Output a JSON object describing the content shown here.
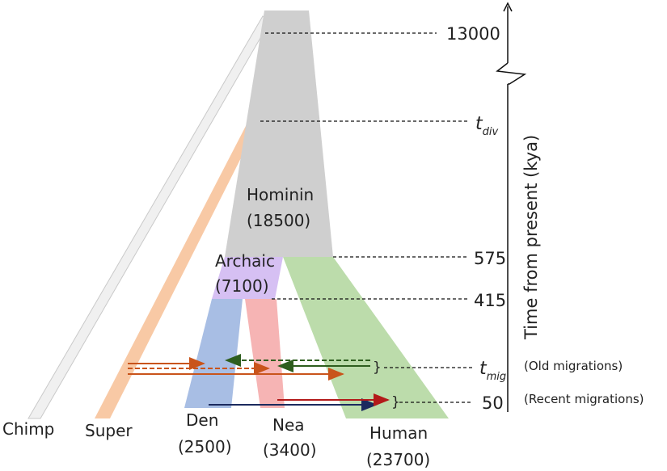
{
  "diagram": {
    "populations": {
      "chimp": {
        "name": "Chimp"
      },
      "super": {
        "name": "Super"
      },
      "hominin": {
        "name": "Hominin",
        "size": "(18500)"
      },
      "archaic": {
        "name": "Archaic",
        "size": "(7100)"
      },
      "den": {
        "name": "Den",
        "size": "(2500)"
      },
      "nea": {
        "name": "Nea",
        "size": "(3400)"
      },
      "human": {
        "name": "Human",
        "size": "(23700)"
      }
    },
    "time_axis": {
      "title": "Time from present (kya)",
      "ticks": {
        "t13000": "13000",
        "t_div_main": "t",
        "t_div_sub": "div",
        "t575": "575",
        "t415": "415",
        "t_mig_main": "t",
        "t_mig_sub": "mig",
        "t50": "50"
      }
    },
    "annotations": {
      "old_migrations": "(Old migrations)",
      "recent_migrations": "(Recent migrations)",
      "brace": "}"
    },
    "colors": {
      "chimp": "#eeeeee",
      "super": "#f8c9a5",
      "hominin": "#cfcfcf",
      "archaic": "#d5bff2",
      "den": "#a7bde3",
      "nea": "#f6b3b3",
      "human": "#b9dca8",
      "arrow_orange": "#c9541b",
      "arrow_green": "#2e5e1e",
      "arrow_navy": "#1b2a5e",
      "arrow_red": "#b31a1a"
    }
  }
}
